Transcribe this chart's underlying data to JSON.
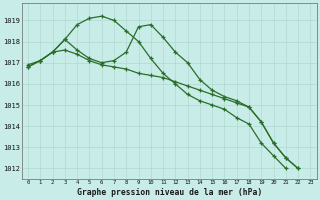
{
  "x": [
    0,
    1,
    2,
    3,
    4,
    5,
    6,
    7,
    8,
    9,
    10,
    11,
    12,
    13,
    14,
    15,
    16,
    17,
    18,
    19,
    20,
    21,
    22,
    23
  ],
  "series1": [
    1016.9,
    1017.1,
    1017.5,
    1018.1,
    1018.8,
    1019.1,
    1019.2,
    1019.0,
    1018.5,
    1018.0,
    1017.2,
    1016.5,
    1016.0,
    1015.5,
    1015.2,
    1015.0,
    1014.8,
    1014.4,
    1014.1,
    1013.2,
    1012.6,
    1012.0,
    null,
    null
  ],
  "series2": [
    1016.8,
    1017.1,
    1017.5,
    1018.1,
    1017.6,
    1017.2,
    1017.0,
    1017.1,
    1017.5,
    1018.7,
    1018.8,
    1018.2,
    1017.5,
    1017.0,
    1016.2,
    1015.7,
    1015.4,
    1015.2,
    1014.9,
    1014.2,
    1013.2,
    1012.5,
    1012.0,
    null
  ],
  "series3": [
    1016.8,
    1017.1,
    1017.5,
    1017.6,
    1017.4,
    1017.1,
    1016.9,
    1016.8,
    1016.7,
    1016.5,
    1016.4,
    1016.3,
    1016.1,
    1015.9,
    1015.7,
    1015.5,
    1015.3,
    1015.1,
    1014.9,
    1014.2,
    1013.2,
    1012.5,
    1012.0,
    null
  ],
  "line_color": "#2a6e2a",
  "bg_color": "#c8ece8",
  "grid_color_major": "#b0d8d0",
  "grid_color_minor": "#d0ece8",
  "title": "Graphe pression niveau de la mer (hPa)",
  "ylim": [
    1011.5,
    1019.8
  ],
  "yticks": [
    1012,
    1013,
    1014,
    1015,
    1016,
    1017,
    1018,
    1019
  ],
  "xlim": [
    -0.5,
    23.5
  ]
}
